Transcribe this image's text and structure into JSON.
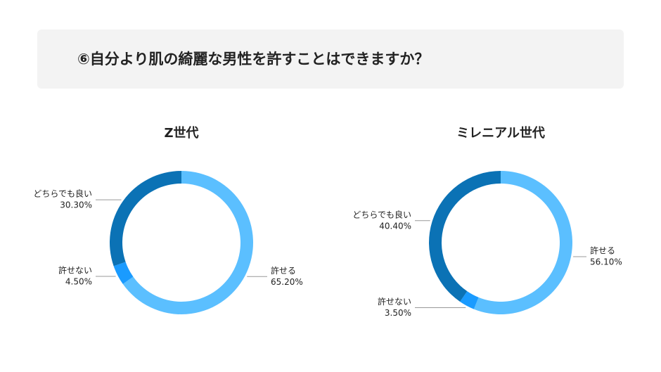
{
  "header": {
    "title": "⑥自分より肌の綺麗な男性を許すことはできますか？"
  },
  "chart_data": [
    {
      "type": "donut",
      "title": "Z世代",
      "categories": [
        "許せる",
        "許せない",
        "どちらでも良い"
      ],
      "values": [
        65.2,
        4.5,
        30.3
      ],
      "value_labels": [
        "65.20%",
        "4.50%",
        "30.30%"
      ],
      "colors": [
        "#5bbfff",
        "#1a9bff",
        "#0b72b5"
      ]
    },
    {
      "type": "donut",
      "title": "ミレニアル世代",
      "categories": [
        "許せる",
        "許せない",
        "どちらでも良い"
      ],
      "values": [
        56.1,
        3.5,
        40.4
      ],
      "value_labels": [
        "56.10%",
        "3.50%",
        "40.40%"
      ],
      "colors": [
        "#5bbfff",
        "#1a9bff",
        "#0b72b5"
      ]
    }
  ]
}
